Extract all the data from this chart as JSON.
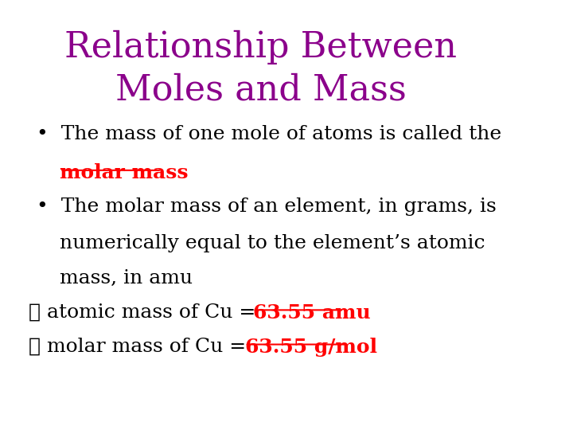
{
  "title_line1": "Relationship Between",
  "title_line2": "Moles and Mass",
  "title_color": "#8B008B",
  "title_fontsize": 32,
  "background_color": "#ffffff",
  "body_fontsize": 18,
  "body_color": "#000000",
  "highlight_color": "#FF0000",
  "bullet1_normal": "The mass of one mole of atoms is called the",
  "bullet1_highlight": "molar mass",
  "bullet2_text": "The molar mass of an element, in grams, is\nnumerically equal to the element’s atomic\nmass, in amu",
  "check1_normal": " atomic mass of Cu = ",
  "check1_highlight": "63.55 amu",
  "check2_normal": " molar mass of Cu = ",
  "check2_highlight": "63.55 g/mol"
}
